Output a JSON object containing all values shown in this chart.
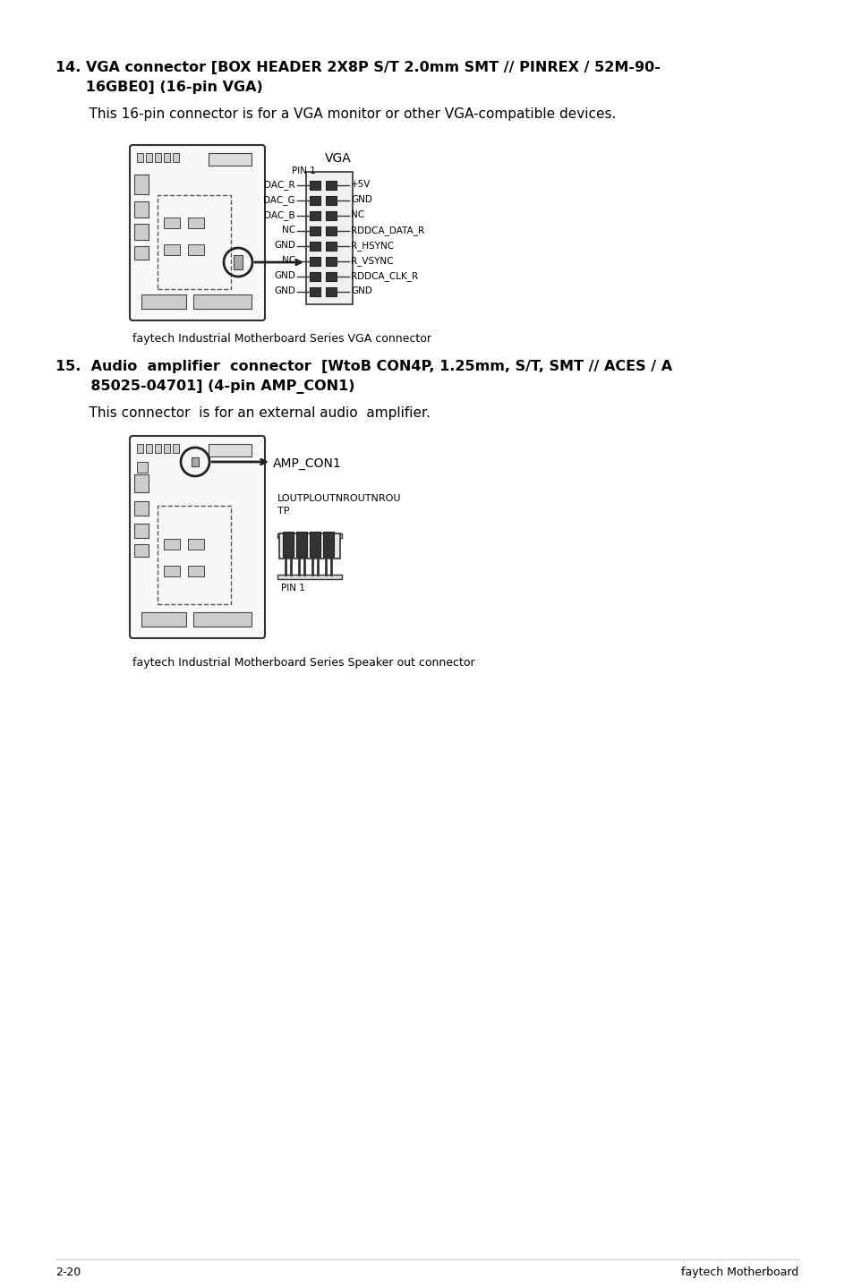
{
  "bg_color": "#ffffff",
  "text_color": "#000000",
  "section14_heading_line1": "14. VGA connector [BOX HEADER 2X8P S/T 2.0mm SMT // PINREX / 52M-90-",
  "section14_heading_line2": "      16GBE0] (16-pin VGA)",
  "section14_desc": "    This 16-pin connector is for a VGA monitor or other VGA-compatible devices.",
  "vga_caption": "faytech Industrial Motherboard Series VGA connector",
  "section15_heading_line1": "15.  Audio  amplifier  connector  [WtoB CON4P, 1.25mm, S/T, SMT // ACES / A",
  "section15_heading_line2": "       85025-04701] (4-pin AMP_CON1)",
  "section15_desc": "    This connector  is for an external audio  amplifier.",
  "amp_caption": "faytech Industrial Motherboard Series Speaker out connector",
  "footer_left": "2-20",
  "footer_right": "faytech Motherboard",
  "vga_label": "VGA",
  "pin1_label": "PIN 1",
  "vga_left_pins": [
    "DAC_R",
    "DAC_G",
    "DAC_B",
    "NC",
    "GND",
    "NC",
    "GND",
    "GND"
  ],
  "vga_right_pins": [
    "+5V",
    "GND",
    "NC",
    "RDDCA_DATA_R",
    "R_HSYNC",
    "R_VSYNC",
    "RDDCA_CLK_R",
    "GND"
  ],
  "amp_con_label": "AMP_CON1",
  "amp_pin_label_line1": "LOUTPLOUTNROUTNROU",
  "amp_pin_label_line2": "TP",
  "amp_pin1_label": "PIN 1"
}
